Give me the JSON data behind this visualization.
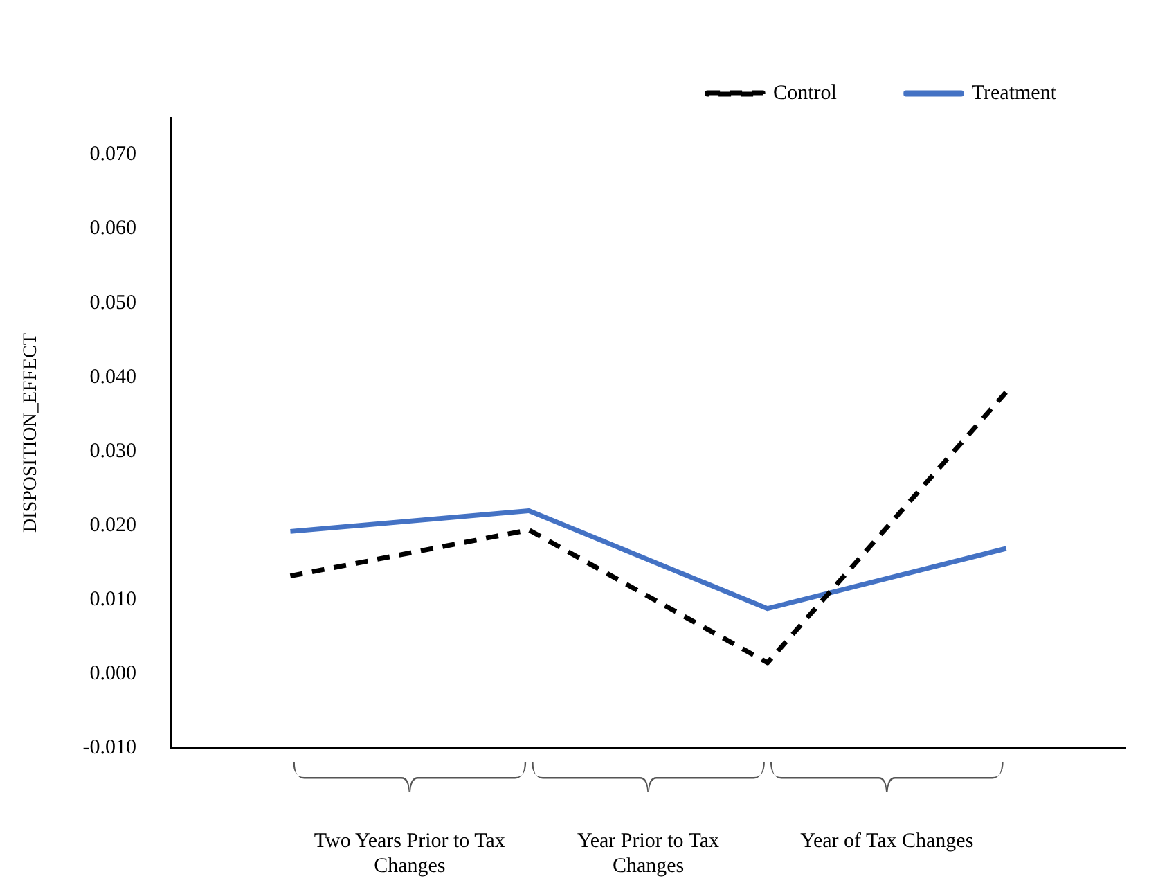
{
  "chart_data": {
    "type": "line",
    "ylabel": "DISPOSITION_EFFECT",
    "categories": [
      null,
      null,
      null,
      null
    ],
    "ylim": [
      -0.01,
      0.075
    ],
    "yticks": [
      {
        "value": -0.01,
        "label": "-0.010"
      },
      {
        "value": 0,
        "label": "0.000"
      },
      {
        "value": 0.01,
        "label": "0.010"
      },
      {
        "value": 0.02,
        "label": "0.020"
      },
      {
        "value": 0.03,
        "label": "0.030"
      },
      {
        "value": 0.04,
        "label": "0.040"
      },
      {
        "value": 0.05,
        "label": "0.050"
      },
      {
        "value": 0.06,
        "label": "0.060"
      },
      {
        "value": 0.07,
        "label": "0.070"
      }
    ],
    "series": [
      {
        "name": "Control",
        "color": "#000000",
        "line_style": "dashed",
        "values": [
          0.0132,
          0.0194,
          0.0015,
          0.038
        ]
      },
      {
        "name": "Treatment",
        "color": "#4472c4",
        "line_style": "solid",
        "values": [
          0.0192,
          0.022,
          0.0088,
          0.0169
        ]
      }
    ],
    "annotations": [
      "Two Years Prior to Tax Changes",
      "Year Prior to Tax Changes",
      "Year of Tax Changes"
    ],
    "grid": false,
    "legend": "top right",
    "marker": "none"
  }
}
